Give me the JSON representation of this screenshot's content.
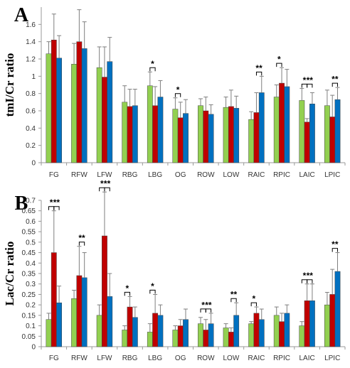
{
  "chart_data": [
    {
      "type": "bar",
      "panel": "A",
      "ylabel": "tmI/Cr ratio",
      "ylim": [
        0,
        1.8
      ],
      "yticks": [
        "0",
        "0.2",
        "0.4",
        "0.6",
        "0.8",
        "1",
        "1.2",
        "1.4",
        "1.6"
      ],
      "grid": false,
      "categories": [
        "FG",
        "RFW",
        "LFW",
        "RBG",
        "LBG",
        "OG",
        "ROW",
        "LOW",
        "RAIC",
        "RPIC",
        "LAIC",
        "LPIC"
      ],
      "series": [
        {
          "color": "#92d050",
          "values": [
            1.26,
            1.14,
            1.1,
            0.7,
            0.89,
            0.62,
            0.66,
            0.64,
            0.5,
            0.76,
            0.72,
            0.66
          ],
          "errors": [
            0.14,
            0.24,
            0.24,
            0.19,
            0.16,
            0.13,
            0.08,
            0.12,
            0.09,
            0.14,
            0.14,
            0.18
          ]
        },
        {
          "color": "#c00000",
          "values": [
            1.42,
            1.4,
            0.99,
            0.65,
            0.66,
            0.52,
            0.6,
            0.65,
            0.58,
            0.92,
            0.47,
            0.53
          ],
          "errors": [
            0.3,
            0.37,
            0.35,
            0.2,
            0.22,
            0.18,
            0.16,
            0.19,
            0.23,
            0.18,
            0.04,
            0.25
          ]
        },
        {
          "color": "#0070c0",
          "values": [
            1.21,
            1.32,
            1.17,
            0.66,
            0.76,
            0.57,
            0.56,
            0.63,
            0.81,
            0.88,
            0.68,
            0.73
          ],
          "errors": [
            0.26,
            0.31,
            0.28,
            0.19,
            0.19,
            0.16,
            0.11,
            0.14,
            0.19,
            0.2,
            0.13,
            0.14
          ]
        }
      ],
      "significance": [
        {
          "category": "LBG",
          "pair": [
            0,
            1
          ],
          "label": "*"
        },
        {
          "category": "OG",
          "pair": [
            0,
            1
          ],
          "label": "*"
        },
        {
          "category": "RAIC",
          "pair": [
            1,
            2
          ],
          "label": "**"
        },
        {
          "category": "RPIC",
          "pair": [
            0,
            1
          ],
          "label": "*"
        },
        {
          "category": "LAIC",
          "pair": [
            0,
            1
          ],
          "label": "*"
        },
        {
          "category": "LAIC",
          "pair": [
            1,
            2
          ],
          "label": "**"
        },
        {
          "category": "LPIC",
          "pair": [
            1,
            2
          ],
          "label": "**"
        }
      ]
    },
    {
      "type": "bar",
      "panel": "B",
      "ylabel": "Lac/Cr ratio",
      "ylim": [
        0,
        0.7
      ],
      "yticks": [
        "0",
        "0.05",
        "0.1",
        "0.15",
        "0.2",
        "0.25",
        "0.3",
        "0.35",
        "0.4",
        "0.45",
        "0.5",
        "0.55",
        "0.6",
        "0.65",
        "0.7"
      ],
      "grid": false,
      "categories": [
        "FG",
        "RFW",
        "LFW",
        "RBG",
        "LBG",
        "OG",
        "ROW",
        "LOW",
        "RAIC",
        "RPIC",
        "LAIC",
        "LPIC"
      ],
      "series": [
        {
          "color": "#92d050",
          "values": [
            0.13,
            0.23,
            0.15,
            0.08,
            0.07,
            0.08,
            0.11,
            0.09,
            0.11,
            0.15,
            0.1,
            0.2
          ],
          "errors": [
            0.03,
            0.04,
            0.05,
            0.02,
            0.04,
            0.02,
            0.03,
            0.02,
            0.01,
            0.04,
            0.02,
            0.06
          ]
        },
        {
          "color": "#c00000",
          "values": [
            0.45,
            0.34,
            0.53,
            0.19,
            0.16,
            0.1,
            0.08,
            0.07,
            0.16,
            0.12,
            0.22,
            0.25
          ],
          "errors": [
            0.2,
            0.14,
            0.21,
            0.05,
            0.09,
            0.03,
            0.05,
            0.02,
            0.03,
            0.04,
            0.08,
            0.12
          ]
        },
        {
          "color": "#0070c0",
          "values": [
            0.21,
            0.33,
            0.24,
            0.14,
            0.15,
            0.13,
            0.11,
            0.15,
            0.13,
            0.16,
            0.22,
            0.36
          ],
          "errors": [
            0.08,
            0.12,
            0.11,
            0.05,
            0.05,
            0.05,
            0.05,
            0.06,
            0.05,
            0.04,
            0.08,
            0.09
          ]
        }
      ],
      "significance": [
        {
          "category": "FG",
          "pair": [
            0,
            1
          ],
          "label": "*"
        },
        {
          "category": "FG",
          "pair": [
            1,
            2
          ],
          "label": "**"
        },
        {
          "category": "RFW",
          "pair": [
            1,
            2
          ],
          "label": "**"
        },
        {
          "category": "LFW",
          "pair": [
            0,
            1
          ],
          "label": "*"
        },
        {
          "category": "LFW",
          "pair": [
            1,
            2
          ],
          "label": "**"
        },
        {
          "category": "RBG",
          "pair": [
            0,
            1
          ],
          "label": "*"
        },
        {
          "category": "LBG",
          "pair": [
            0,
            1
          ],
          "label": "*"
        },
        {
          "category": "ROW",
          "pair": [
            0,
            1
          ],
          "label": "*"
        },
        {
          "category": "ROW",
          "pair": [
            1,
            2
          ],
          "label": "**"
        },
        {
          "category": "LOW",
          "pair": [
            1,
            2
          ],
          "label": "**"
        },
        {
          "category": "RAIC",
          "pair": [
            0,
            1
          ],
          "label": "*"
        },
        {
          "category": "LAIC",
          "pair": [
            0,
            1
          ],
          "label": "*"
        },
        {
          "category": "LAIC",
          "pair": [
            1,
            2
          ],
          "label": "**"
        },
        {
          "category": "LPIC",
          "pair": [
            1,
            2
          ],
          "label": "**"
        }
      ]
    }
  ]
}
